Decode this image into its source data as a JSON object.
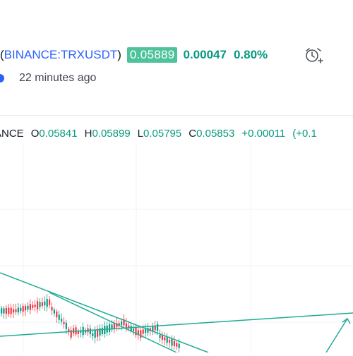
{
  "header": {
    "paren_open": "(",
    "symbol": "BINANCE:TRXUSDT",
    "paren_close": ")",
    "price": "0.05889",
    "change": "0.00047",
    "change_pct": "0.80%",
    "posted_ago": "22 minutes ago",
    "alarm_icon": "add-alarm-icon"
  },
  "ohlc": {
    "exchange": "ANCE",
    "o_label": "O",
    "o": "0.05841",
    "h_label": "H",
    "h": "0.05899",
    "l_label": "L",
    "l": "0.05795",
    "c_label": "C",
    "c": "0.05853",
    "change": "+0.00011",
    "change_pct": "(+0.1"
  },
  "colors": {
    "up": "#089981",
    "down": "#f23645",
    "trendline": "#22ab94",
    "symbol": "#2962ff",
    "price_badge": "#4ec29a"
  }
}
